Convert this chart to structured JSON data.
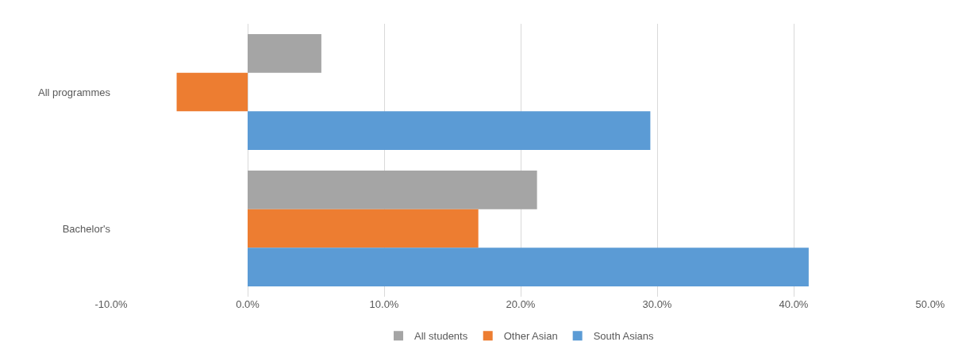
{
  "chart_data": {
    "type": "bar",
    "orientation": "horizontal",
    "categories": [
      "All programmes",
      "Bachelor's"
    ],
    "series": [
      {
        "name": "All students",
        "color": "#a5a5a5",
        "values": [
          5.4,
          21.2
        ]
      },
      {
        "name": "Other Asian",
        "color": "#ed7d31",
        "values": [
          -5.2,
          16.9
        ]
      },
      {
        "name": "South Asians",
        "color": "#5b9bd5",
        "values": [
          29.5,
          41.1
        ]
      }
    ],
    "xlim": [
      -10,
      50
    ],
    "xticks": [
      {
        "value": -10,
        "label": "-10.0%"
      },
      {
        "value": 0,
        "label": "0.0%"
      },
      {
        "value": 10,
        "label": "10.0%"
      },
      {
        "value": 20,
        "label": "20.0%"
      },
      {
        "value": 30,
        "label": "30.0%"
      },
      {
        "value": 40,
        "label": "40.0%"
      },
      {
        "value": 50,
        "label": "50.0%"
      }
    ],
    "grid": "x",
    "legend": "bottom"
  }
}
